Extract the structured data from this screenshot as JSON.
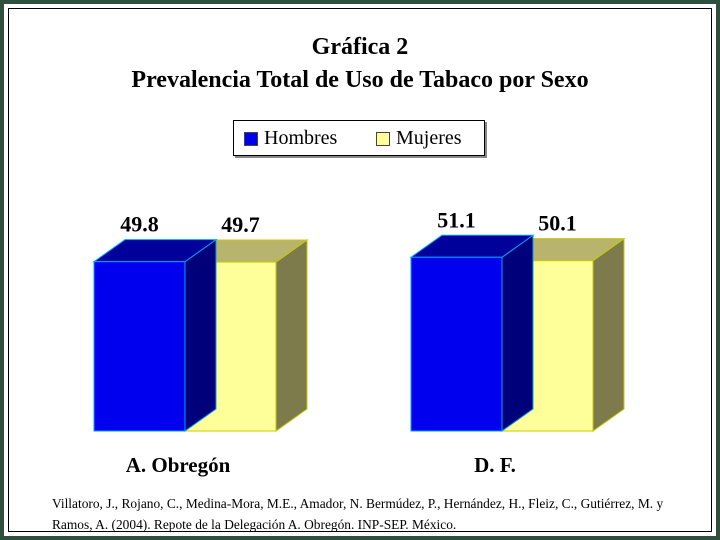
{
  "title": "Gráfica 2",
  "subtitle": "Prevalencia Total de Uso de Tabaco por Sexo",
  "legend": [
    {
      "label": "Hombres",
      "color": "#0000ee"
    },
    {
      "label": "Mujeres",
      "color": "#ffff99"
    }
  ],
  "chart_data": {
    "type": "bar",
    "title": "Gráfica 2",
    "subtitle": "Prevalencia Total de Uso de Tabaco por Sexo",
    "categories": [
      "A. Obregón",
      "D. F."
    ],
    "series": [
      {
        "name": "Hombres",
        "values": [
          49.8,
          51.1
        ],
        "color": "#0000ee",
        "label_text": [
          "49.8",
          "51.1"
        ]
      },
      {
        "name": "Mujeres",
        "values": [
          49.7,
          50.1
        ],
        "color": "#ffff99",
        "label_text": [
          "49.7",
          "50.1"
        ]
      }
    ],
    "xlabel": "",
    "ylabel": "",
    "grid": false,
    "legend_position": "top",
    "style": "3d-column"
  },
  "citation": "Villatoro, J., Rojano, C., Medina-Mora, M.E., Amador, N. Bermúdez, P., Hernández, H., Fleiz, C., Gutiérrez, M. y Ramos, A. (2004). Repote de la Delegación A. Obregón. INP-SEP. México."
}
